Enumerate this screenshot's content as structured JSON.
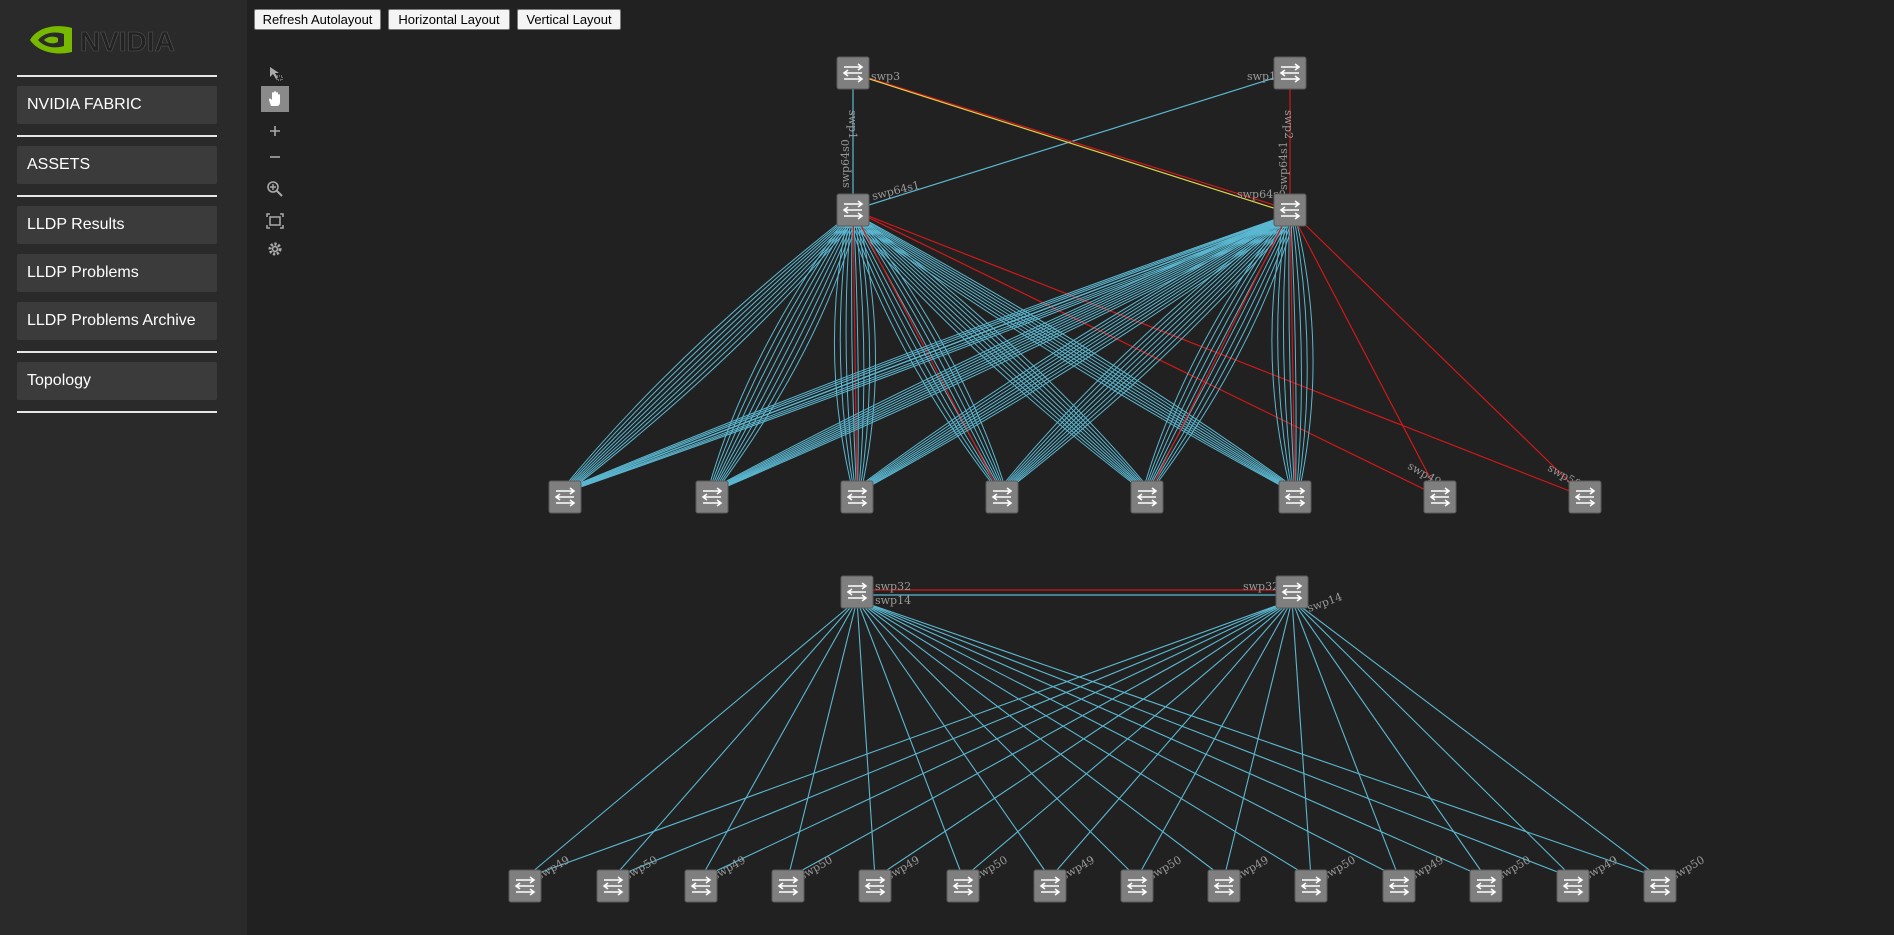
{
  "brand": {
    "name": "NVIDIA",
    "logo_icon": "nvidia-eye-icon",
    "accent": "#76b900"
  },
  "sidebar": {
    "items": [
      {
        "label": "NVIDIA FABRIC"
      },
      {
        "label": "ASSETS"
      },
      {
        "label": "LLDP Results"
      },
      {
        "label": "LLDP Problems"
      },
      {
        "label": "LLDP Problems Archive"
      },
      {
        "label": "Topology"
      }
    ]
  },
  "toolbar": {
    "refresh_label": "Refresh Autolayout",
    "horizontal_label": "Horizontal Layout",
    "vertical_label": "Vertical Layout"
  },
  "graph_tools": [
    {
      "icon": "pointer-select-icon"
    },
    {
      "icon": "hand-pan-icon",
      "active": true
    },
    {
      "icon": "zoom-in-icon"
    },
    {
      "icon": "zoom-out-icon"
    },
    {
      "icon": "zoom-region-icon"
    },
    {
      "icon": "fit-to-screen-icon"
    },
    {
      "icon": "gear-icon"
    }
  ],
  "colors": {
    "link_ok": "#5bb8d2",
    "link_problem": "#d01818",
    "link_warning": "#e0d24a",
    "node": "#7f7f7f"
  },
  "fabric_a": {
    "spine_port_labels": [
      "swp3",
      "swp1",
      "swp1",
      "swp2"
    ],
    "leaf_uplink_labels": [
      "swp64s0",
      "swp64s1",
      "swp64s0",
      "swp64s1"
    ],
    "access_port_labels": [
      "swp49",
      "swp50"
    ]
  },
  "fabric_b": {
    "top_port_labels": [
      "swp32",
      "swp14",
      "swp32",
      "swp14"
    ],
    "edge_port_labels": [
      "swp49",
      "swp50"
    ]
  }
}
